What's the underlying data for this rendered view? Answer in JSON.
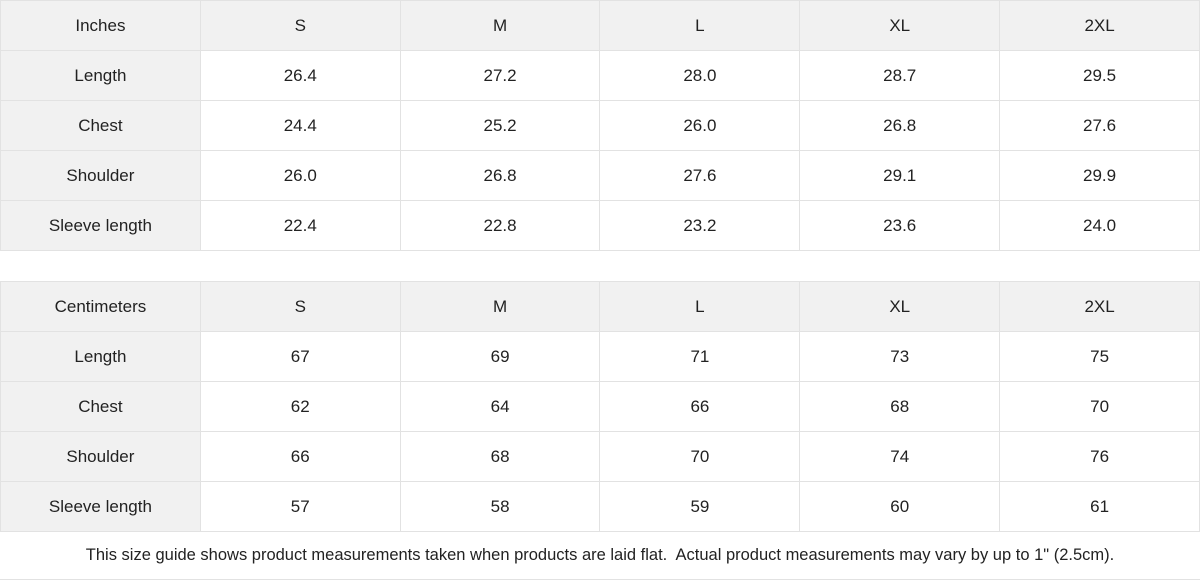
{
  "colors": {
    "shaded_cell_bg": "#f1f1f1",
    "cell_border": "#e2e2e2",
    "text": "#222222",
    "page_bg": "#ffffff"
  },
  "tables": [
    {
      "unit_label": "Inches",
      "size_headers": [
        "S",
        "M",
        "L",
        "XL",
        "2XL"
      ],
      "rows": [
        {
          "label": "Length",
          "values": [
            "26.4",
            "27.2",
            "28.0",
            "28.7",
            "29.5"
          ]
        },
        {
          "label": "Chest",
          "values": [
            "24.4",
            "25.2",
            "26.0",
            "26.8",
            "27.6"
          ]
        },
        {
          "label": "Shoulder",
          "values": [
            "26.0",
            "26.8",
            "27.6",
            "29.1",
            "29.9"
          ]
        },
        {
          "label": "Sleeve length",
          "values": [
            "22.4",
            "22.8",
            "23.2",
            "23.6",
            "24.0"
          ]
        }
      ]
    },
    {
      "unit_label": "Centimeters",
      "size_headers": [
        "S",
        "M",
        "L",
        "XL",
        "2XL"
      ],
      "rows": [
        {
          "label": "Length",
          "values": [
            "67",
            "69",
            "71",
            "73",
            "75"
          ]
        },
        {
          "label": "Chest",
          "values": [
            "62",
            "64",
            "66",
            "68",
            "70"
          ]
        },
        {
          "label": "Shoulder",
          "values": [
            "66",
            "68",
            "70",
            "74",
            "76"
          ]
        },
        {
          "label": "Sleeve length",
          "values": [
            "57",
            "58",
            "59",
            "60",
            "61"
          ]
        }
      ]
    }
  ],
  "footer": {
    "note": "This size guide shows product measurements taken when products are laid flat.  Actual product measurements may vary by up to 1\" (2.5cm)."
  }
}
